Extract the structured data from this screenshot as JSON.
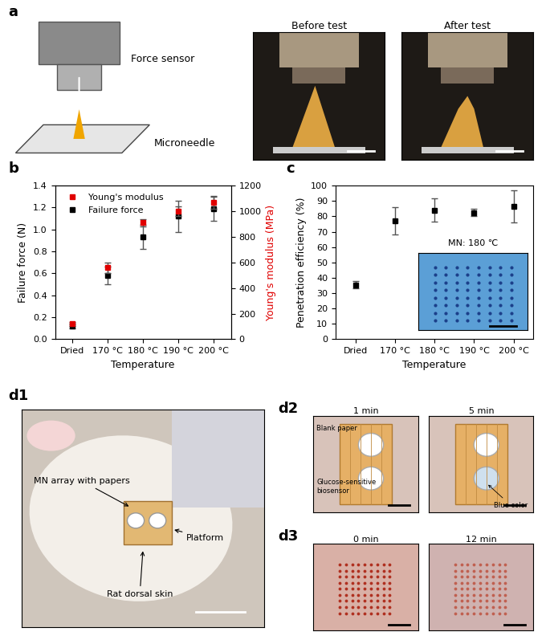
{
  "chart_data": [
    {
      "type": "scatter",
      "panel": "b",
      "categories": [
        "Dried",
        "170 °C",
        "180 °C",
        "190 °C",
        "200 °C"
      ],
      "x_label": "Temperature",
      "y_label": "Failure force (N)",
      "y2_label": "Young's modulus (MPa)",
      "ylim": [
        0,
        1.4
      ],
      "yticks": [
        {
          "value": 0,
          "label": "0.0"
        },
        0.2,
        0.4,
        0.6,
        0.8,
        {
          "value": 1,
          "label": "1.0"
        },
        1.2,
        1.4
      ],
      "y2lim": [
        0,
        1200
      ],
      "y2ticks": [
        0,
        200,
        400,
        600,
        800,
        1000,
        1200
      ],
      "legend": "upper left",
      "grid": false,
      "series": [
        {
          "name": "Young's modulus",
          "color": "#e00000",
          "marker": "square",
          "axis": "y2",
          "values": [
            120,
            560,
            910,
            1000,
            1070
          ],
          "errors": [
            15,
            40,
            30,
            40,
            50
          ]
        },
        {
          "name": "Failure force",
          "color": "#000000",
          "marker": "square",
          "values": [
            0.12,
            0.58,
            0.93,
            1.12,
            1.19
          ],
          "errors": [
            0.02,
            0.08,
            0.11,
            0.14,
            0.11
          ]
        }
      ]
    },
    {
      "type": "scatter",
      "panel": "c",
      "categories": [
        "Dried",
        "170 °C",
        "180 °C",
        "190 °C",
        "200 °C"
      ],
      "x_label": "Temperature",
      "y_label": "Penetration efficiency (%)",
      "ylim": [
        0,
        100
      ],
      "yticks": [
        0,
        10,
        20,
        30,
        40,
        50,
        60,
        70,
        80,
        90,
        100
      ],
      "grid": false,
      "inset_label": "MN: 180 ℃",
      "series": [
        {
          "name": "Penetration efficiency",
          "color": "#000000",
          "marker": "square",
          "values": [
            35.5,
            77,
            84,
            82.5,
            86.5
          ],
          "errors": [
            2.5,
            9,
            7.5,
            2.5,
            10.5
          ]
        }
      ]
    }
  ],
  "panels": {
    "a": {
      "label": "a",
      "sensor": "Force sensor",
      "needle": "Microneedle",
      "photos": [
        "Before test",
        "After test"
      ]
    },
    "d1": {
      "label": "d1",
      "callouts": [
        "MN array with papers",
        "Platform",
        "Rat dorsal skin"
      ]
    },
    "d2": {
      "label": "d2",
      "photos": [
        "1 min",
        "5 min"
      ],
      "callouts": [
        "Blank paper",
        "Glucose-sensitive\nbiosensor",
        "Blue color"
      ]
    },
    "d3": {
      "label": "d3",
      "photos": [
        "0 min",
        "12 min"
      ]
    }
  }
}
